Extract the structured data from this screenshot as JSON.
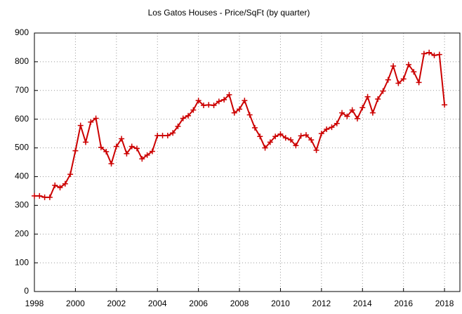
{
  "chart_data": {
    "type": "line",
    "title": "Los Gatos Houses - Price/SqFt (by quarter)",
    "x": [
      1998,
      1998.25,
      1998.5,
      1998.75,
      1999,
      1999.25,
      1999.5,
      1999.75,
      2000,
      2000.25,
      2000.5,
      2000.75,
      2001,
      2001.25,
      2001.5,
      2001.75,
      2002,
      2002.25,
      2002.5,
      2002.75,
      2003,
      2003.25,
      2003.5,
      2003.75,
      2004,
      2004.25,
      2004.5,
      2004.75,
      2005,
      2005.25,
      2005.5,
      2005.75,
      2006,
      2006.25,
      2006.5,
      2006.75,
      2007,
      2007.25,
      2007.5,
      2007.75,
      2008,
      2008.25,
      2008.5,
      2008.75,
      2009,
      2009.25,
      2009.5,
      2009.75,
      2010,
      2010.25,
      2010.5,
      2010.75,
      2011,
      2011.25,
      2011.5,
      2011.75,
      2012,
      2012.25,
      2012.5,
      2012.75,
      2013,
      2013.25,
      2013.5,
      2013.75,
      2014,
      2014.25,
      2014.5,
      2014.75,
      2015,
      2015.25,
      2015.5,
      2015.75,
      2016,
      2016.25,
      2016.5,
      2016.75,
      2017,
      2017.25,
      2017.5,
      2017.75,
      2018
    ],
    "series": [
      {
        "color": "#cc0000",
        "values": [
          333,
          333,
          328,
          328,
          370,
          362,
          375,
          408,
          490,
          578,
          520,
          590,
          603,
          502,
          487,
          445,
          505,
          532,
          480,
          505,
          498,
          462,
          475,
          488,
          543,
          543,
          543,
          552,
          575,
          603,
          612,
          632,
          665,
          648,
          650,
          648,
          662,
          668,
          685,
          622,
          635,
          665,
          615,
          570,
          540,
          500,
          520,
          540,
          548,
          535,
          528,
          508,
          542,
          545,
          528,
          492,
          550,
          565,
          572,
          585,
          622,
          610,
          632,
          602,
          640,
          678,
          622,
          670,
          698,
          737,
          785,
          725,
          740,
          790,
          765,
          728,
          828,
          832,
          822,
          825,
          650
        ]
      }
    ],
    "xlim": [
      1998,
      2018.75
    ],
    "xticks": [
      1998,
      2000,
      2002,
      2004,
      2006,
      2008,
      2010,
      2012,
      2014,
      2016,
      2018
    ],
    "ylim": [
      0,
      900
    ],
    "yticks": [
      0,
      100,
      200,
      300,
      400,
      500,
      600,
      700,
      800,
      900
    ],
    "grid": true
  }
}
